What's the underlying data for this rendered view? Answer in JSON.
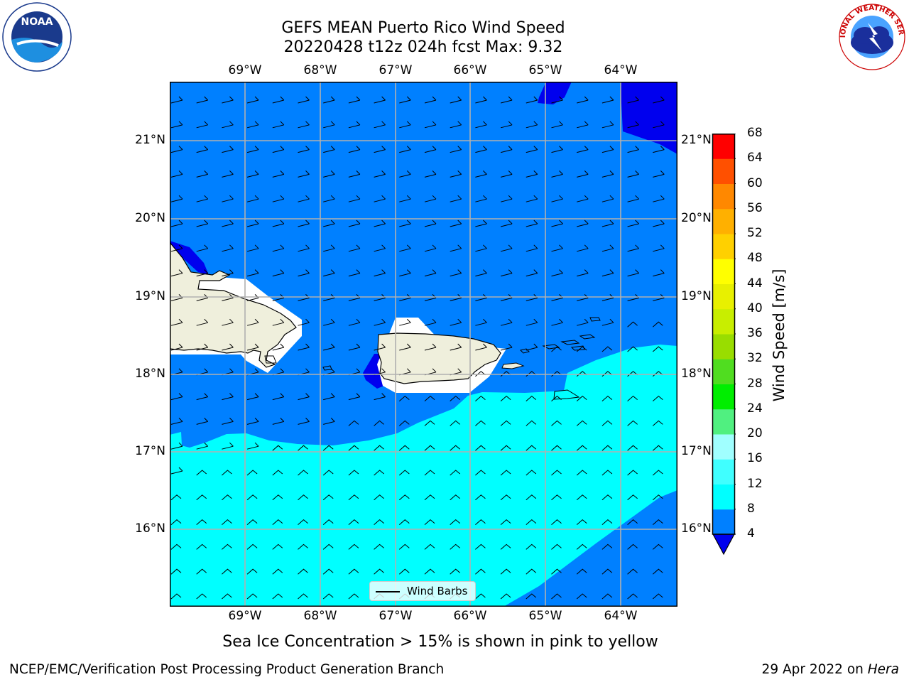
{
  "header": {
    "title_line1": "GEFS MEAN Puerto Rico Wind Speed",
    "title_line2": "20220428 t12z 024h fcst   Max: 9.32"
  },
  "logos": {
    "left": {
      "text": "NOAA",
      "ring_text": "NATIONAL OCEANIC AND ATMOSPHERIC ADMINISTRATION · U.S. DEPARTMENT OF COMMERCE"
    },
    "right": {
      "ring_text": "NATIONAL WEATHER SERVICE"
    }
  },
  "map": {
    "lon_labels": [
      "69°W",
      "68°W",
      "67°W",
      "66°W",
      "65°W",
      "64°W"
    ],
    "lat_labels": [
      "21°N",
      "20°N",
      "19°N",
      "18°N",
      "17°N",
      "16°N"
    ],
    "legend_label": "Wind Barbs",
    "colors": {
      "land": "#efefdc",
      "speed_0_4": "#0000ee",
      "speed_4_8": "#0080ff",
      "speed_8_12": "#00ffff"
    }
  },
  "colorbar": {
    "title": "Wind Speed [m/s]",
    "ticks": [
      "4",
      "8",
      "12",
      "16",
      "20",
      "24",
      "28",
      "32",
      "36",
      "40",
      "44",
      "48",
      "52",
      "56",
      "60",
      "64",
      "68"
    ],
    "colors": [
      "#0080ff",
      "#00ffff",
      "#40ffff",
      "#a0ffff",
      "#50f080",
      "#00ee00",
      "#50dd20",
      "#99dd00",
      "#c8ee00",
      "#e8f000",
      "#ffff00",
      "#ffd000",
      "#ffb000",
      "#ff8800",
      "#ff5000",
      "#ff0000"
    ],
    "under_color": "#0000ee"
  },
  "subtitle": "Sea Ice Concentration > 15% is shown in pink to yellow",
  "footer": {
    "left": "NCEP/EMC/Verification Post Processing Product Generation Branch",
    "right_date": "29 Apr 2022 on ",
    "right_host": "Hera"
  }
}
